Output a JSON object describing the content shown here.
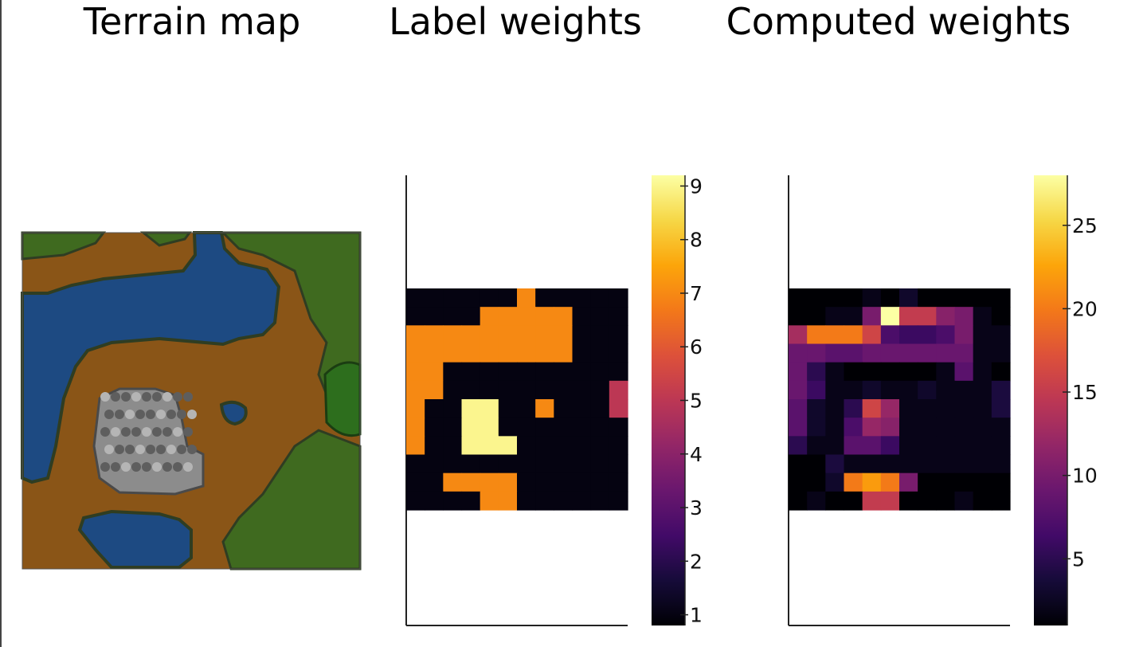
{
  "panels": {
    "terrain": {
      "title": "Terrain map"
    },
    "label": {
      "title": "Label weights"
    },
    "computed": {
      "title": "Computed weights"
    }
  },
  "terrain_map": {
    "colors": {
      "grass": "#3f6a1f",
      "dirt": "#8a5517",
      "water": "#1d4a82",
      "rock": "#8c8c8c",
      "tree": "#2d6e1d",
      "shore": "#2f3d22"
    }
  },
  "chart_data": [
    {
      "type": "heatmap",
      "title": "Label weights",
      "colormap": "inferno",
      "xlabel": "",
      "ylabel": "",
      "grid": false,
      "legend": "colorbar-right",
      "rows": 12,
      "cols": 12,
      "clim": [
        0.8,
        9.2
      ],
      "colorbar_ticks": [
        1,
        2,
        3,
        4,
        5,
        6,
        7,
        8,
        9
      ],
      "values": [
        [
          1,
          1,
          1,
          1,
          1,
          1,
          7,
          1,
          1,
          1,
          1,
          1
        ],
        [
          1,
          1,
          1,
          1,
          7,
          7,
          7,
          7,
          7,
          1,
          1,
          1
        ],
        [
          7,
          7,
          7,
          7,
          7,
          7,
          7,
          7,
          7,
          1,
          1,
          1
        ],
        [
          7,
          7,
          7,
          7,
          7,
          7,
          7,
          7,
          7,
          1,
          1,
          1
        ],
        [
          7,
          7,
          1,
          1,
          1,
          1,
          1,
          1,
          1,
          1,
          1,
          1
        ],
        [
          7,
          7,
          1,
          1,
          1,
          1,
          1,
          1,
          1,
          1,
          1,
          5
        ],
        [
          7,
          1,
          1,
          9,
          9,
          1,
          1,
          7,
          1,
          1,
          1,
          5
        ],
        [
          7,
          1,
          1,
          9,
          9,
          1,
          1,
          1,
          1,
          1,
          1,
          1
        ],
        [
          7,
          1,
          1,
          9,
          9,
          9,
          1,
          1,
          1,
          1,
          1,
          1
        ],
        [
          1,
          1,
          1,
          1,
          1,
          1,
          1,
          1,
          1,
          1,
          1,
          1
        ],
        [
          1,
          1,
          7,
          7,
          7,
          7,
          1,
          1,
          1,
          1,
          1,
          1
        ],
        [
          1,
          1,
          1,
          1,
          7,
          7,
          1,
          1,
          1,
          1,
          1,
          1
        ]
      ]
    },
    {
      "type": "heatmap",
      "title": "Computed weights",
      "colormap": "inferno",
      "xlabel": "",
      "ylabel": "",
      "grid": false,
      "legend": "colorbar-right",
      "rows": 12,
      "cols": 12,
      "clim": [
        1,
        28
      ],
      "colorbar_ticks": [
        5,
        10,
        15,
        20,
        25
      ],
      "values": [
        [
          1,
          1,
          1,
          1,
          2,
          1,
          3,
          1,
          1,
          1,
          1,
          1
        ],
        [
          1,
          1,
          2,
          2,
          10,
          28,
          15,
          15,
          11,
          10,
          2,
          1
        ],
        [
          13,
          20,
          20,
          20,
          16,
          7,
          6,
          6,
          7,
          10,
          2,
          2
        ],
        [
          9,
          9,
          8,
          8,
          9,
          9,
          9,
          9,
          9,
          9,
          2,
          2
        ],
        [
          9,
          5,
          2,
          1,
          1,
          1,
          1,
          1,
          2,
          8,
          2,
          1
        ],
        [
          9,
          6,
          2,
          2,
          3,
          2,
          2,
          3,
          2,
          2,
          2,
          4
        ],
        [
          8,
          3,
          2,
          5,
          16,
          12,
          2,
          2,
          2,
          2,
          2,
          4
        ],
        [
          8,
          3,
          2,
          7,
          12,
          11,
          2,
          2,
          2,
          2,
          2,
          2
        ],
        [
          5,
          2,
          2,
          8,
          8,
          6,
          2,
          2,
          2,
          2,
          2,
          2
        ],
        [
          1,
          1,
          4,
          2,
          2,
          2,
          2,
          2,
          2,
          2,
          2,
          2
        ],
        [
          1,
          1,
          3,
          20,
          22,
          20,
          10,
          1,
          1,
          1,
          1,
          1
        ],
        [
          1,
          2,
          1,
          1,
          15,
          15,
          1,
          1,
          1,
          2,
          1,
          1
        ]
      ]
    }
  ]
}
